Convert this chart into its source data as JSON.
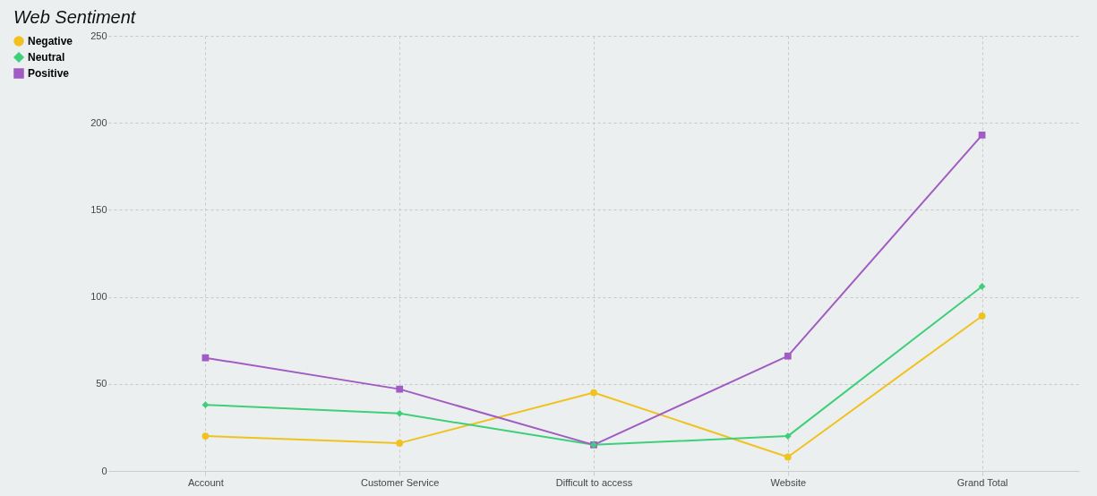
{
  "chart_data": {
    "type": "line",
    "title": "Web Sentiment",
    "categories": [
      "Account",
      "Customer Service",
      "Difficult to access",
      "Website",
      "Grand Total"
    ],
    "series": [
      {
        "name": "Negative",
        "color": "#f0c21f",
        "marker": "circle",
        "values": [
          20,
          16,
          45,
          8,
          89
        ]
      },
      {
        "name": "Neutral",
        "color": "#3ecf79",
        "marker": "diamond",
        "values": [
          38,
          33,
          15,
          20,
          106
        ]
      },
      {
        "name": "Positive",
        "color": "#a05cc2",
        "marker": "square",
        "values": [
          65,
          47,
          15,
          66,
          193
        ]
      }
    ],
    "ylim": [
      0,
      250
    ],
    "yticks": [
      0,
      50,
      100,
      150,
      200,
      250
    ],
    "grid": true,
    "legend": "top left",
    "line_style": "solid"
  }
}
